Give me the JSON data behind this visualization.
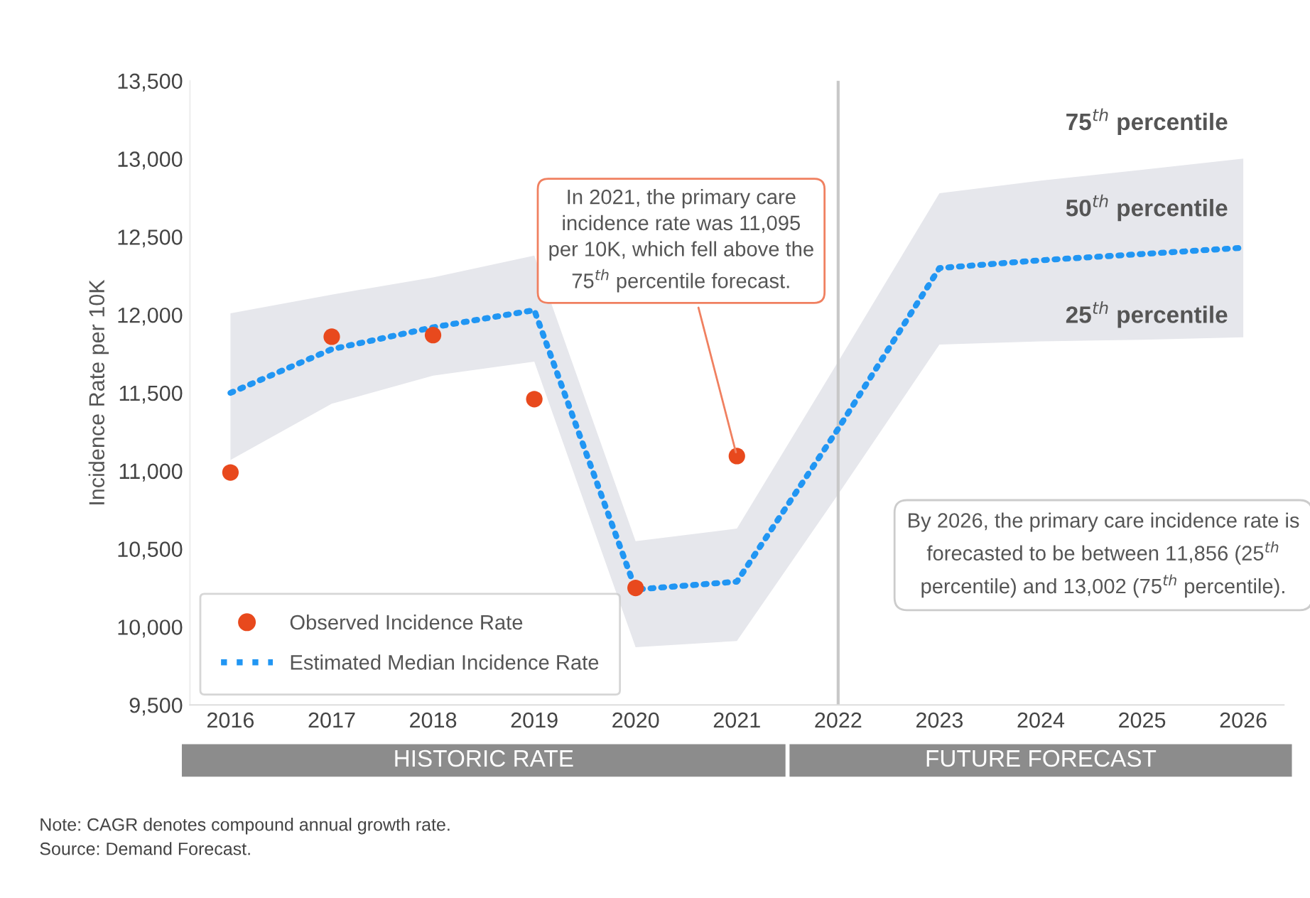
{
  "chart_data": {
    "type": "line",
    "ylabel": "Incidence Rate per 10K",
    "x": [
      2016,
      2017,
      2018,
      2019,
      2020,
      2021,
      2022,
      2023,
      2024,
      2025,
      2026
    ],
    "series": [
      {
        "name": "Observed Incidence Rate",
        "type": "scatter",
        "color": "#e8491d",
        "marker": "circle",
        "x": [
          2016,
          2017,
          2018,
          2019,
          2020,
          2021
        ],
        "values": [
          10990,
          11860,
          11870,
          11460,
          10250,
          11095
        ]
      },
      {
        "name": "Estimated Median Incidence Rate",
        "color": "#2196f3",
        "line_style": "dotted",
        "values": [
          11500,
          11780,
          11920,
          12030,
          10240,
          10290,
          11270,
          12300,
          12350,
          12390,
          12430
        ],
        "lower": [
          11070,
          11430,
          11610,
          11700,
          9870,
          9910,
          10850,
          11810,
          11830,
          11840,
          11856
        ],
        "upper": [
          12010,
          12130,
          12240,
          12380,
          10550,
          10630,
          11700,
          12780,
          12860,
          12930,
          13002
        ]
      }
    ],
    "xlim": [
      2015.6,
      2026.4
    ],
    "xticks": [
      2016,
      2017,
      2018,
      2019,
      2020,
      2021,
      2022,
      2023,
      2024,
      2025,
      2026
    ],
    "ylim": [
      9500,
      13500
    ],
    "yticks": [
      {
        "value": 9500,
        "label": "9,500"
      },
      {
        "value": 10000,
        "label": "10,000"
      },
      {
        "value": 10500,
        "label": "10,500"
      },
      {
        "value": 11000,
        "label": "11,000"
      },
      {
        "value": 11500,
        "label": "11,500"
      },
      {
        "value": 12000,
        "label": "12,000"
      },
      {
        "value": 12500,
        "label": "12,500"
      },
      {
        "value": 13000,
        "label": "13,000"
      },
      {
        "value": 13500,
        "label": "13,500"
      }
    ],
    "ref_lines": [
      {
        "axis": "x",
        "value": 2022,
        "color": "#c8c8c8"
      }
    ],
    "grid": false,
    "legend": "bottom left",
    "annotations": [
      "HISTORIC RATE",
      "FUTURE FORECAST",
      {
        "text": "In 2021, the primary care incidence rate was 11,095 per 10K, which fell above the 75$^{th}$ percentile forecast.",
        "x": 2021,
        "y": 11095
      },
      "By 2026, the primary care incidence rate is forecasted to be between 11,856 (25$^{th}$ percentile) and 13,002 (75$^{th}$ percentile).",
      "75$^{th}$ percentile",
      "50$^{th}$ percentile",
      "25$^{th}$ percentile",
      "Note: CAGR denotes compound annual growth rate.",
      "Source: Demand Forecast."
    ]
  }
}
